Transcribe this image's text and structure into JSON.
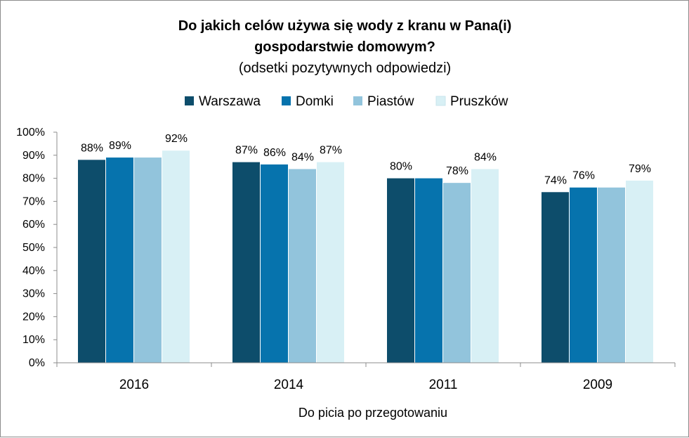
{
  "chart_data": {
    "type": "bar",
    "title_line1": "Do jakich celów używa się wody z kranu w Pana(i)",
    "title_line2": "gospodarstwie domowym?",
    "subtitle": "(odsetki pozytywnych odpowiedzi)",
    "xlabel": "Do picia po przegotowaniu",
    "ylabel": "",
    "ylim": [
      0,
      100
    ],
    "y_ticks": [
      "0%",
      "10%",
      "20%",
      "30%",
      "40%",
      "50%",
      "60%",
      "70%",
      "80%",
      "90%",
      "100%"
    ],
    "categories": [
      "2016",
      "2014",
      "2011",
      "2009"
    ],
    "legend_position": "top",
    "grid": false,
    "series": [
      {
        "name": "Warszawa",
        "color": "#0d4d6b",
        "values": [
          88,
          87,
          80,
          74
        ],
        "labels": [
          "88%",
          "87%",
          "80%",
          "74%"
        ]
      },
      {
        "name": "Domki",
        "color": "#0673ad",
        "values": [
          89,
          86,
          80,
          76
        ],
        "labels": [
          "89%",
          "86%",
          "",
          "76%"
        ]
      },
      {
        "name": "Piastów",
        "color": "#92c4dc",
        "values": [
          89,
          84,
          78,
          76
        ],
        "labels": [
          "",
          "84%",
          "78%",
          ""
        ]
      },
      {
        "name": "Pruszków",
        "color": "#d8f0f5",
        "values": [
          92,
          87,
          84,
          79
        ],
        "labels": [
          "92%",
          "87%",
          "84%",
          "79%"
        ]
      }
    ]
  }
}
